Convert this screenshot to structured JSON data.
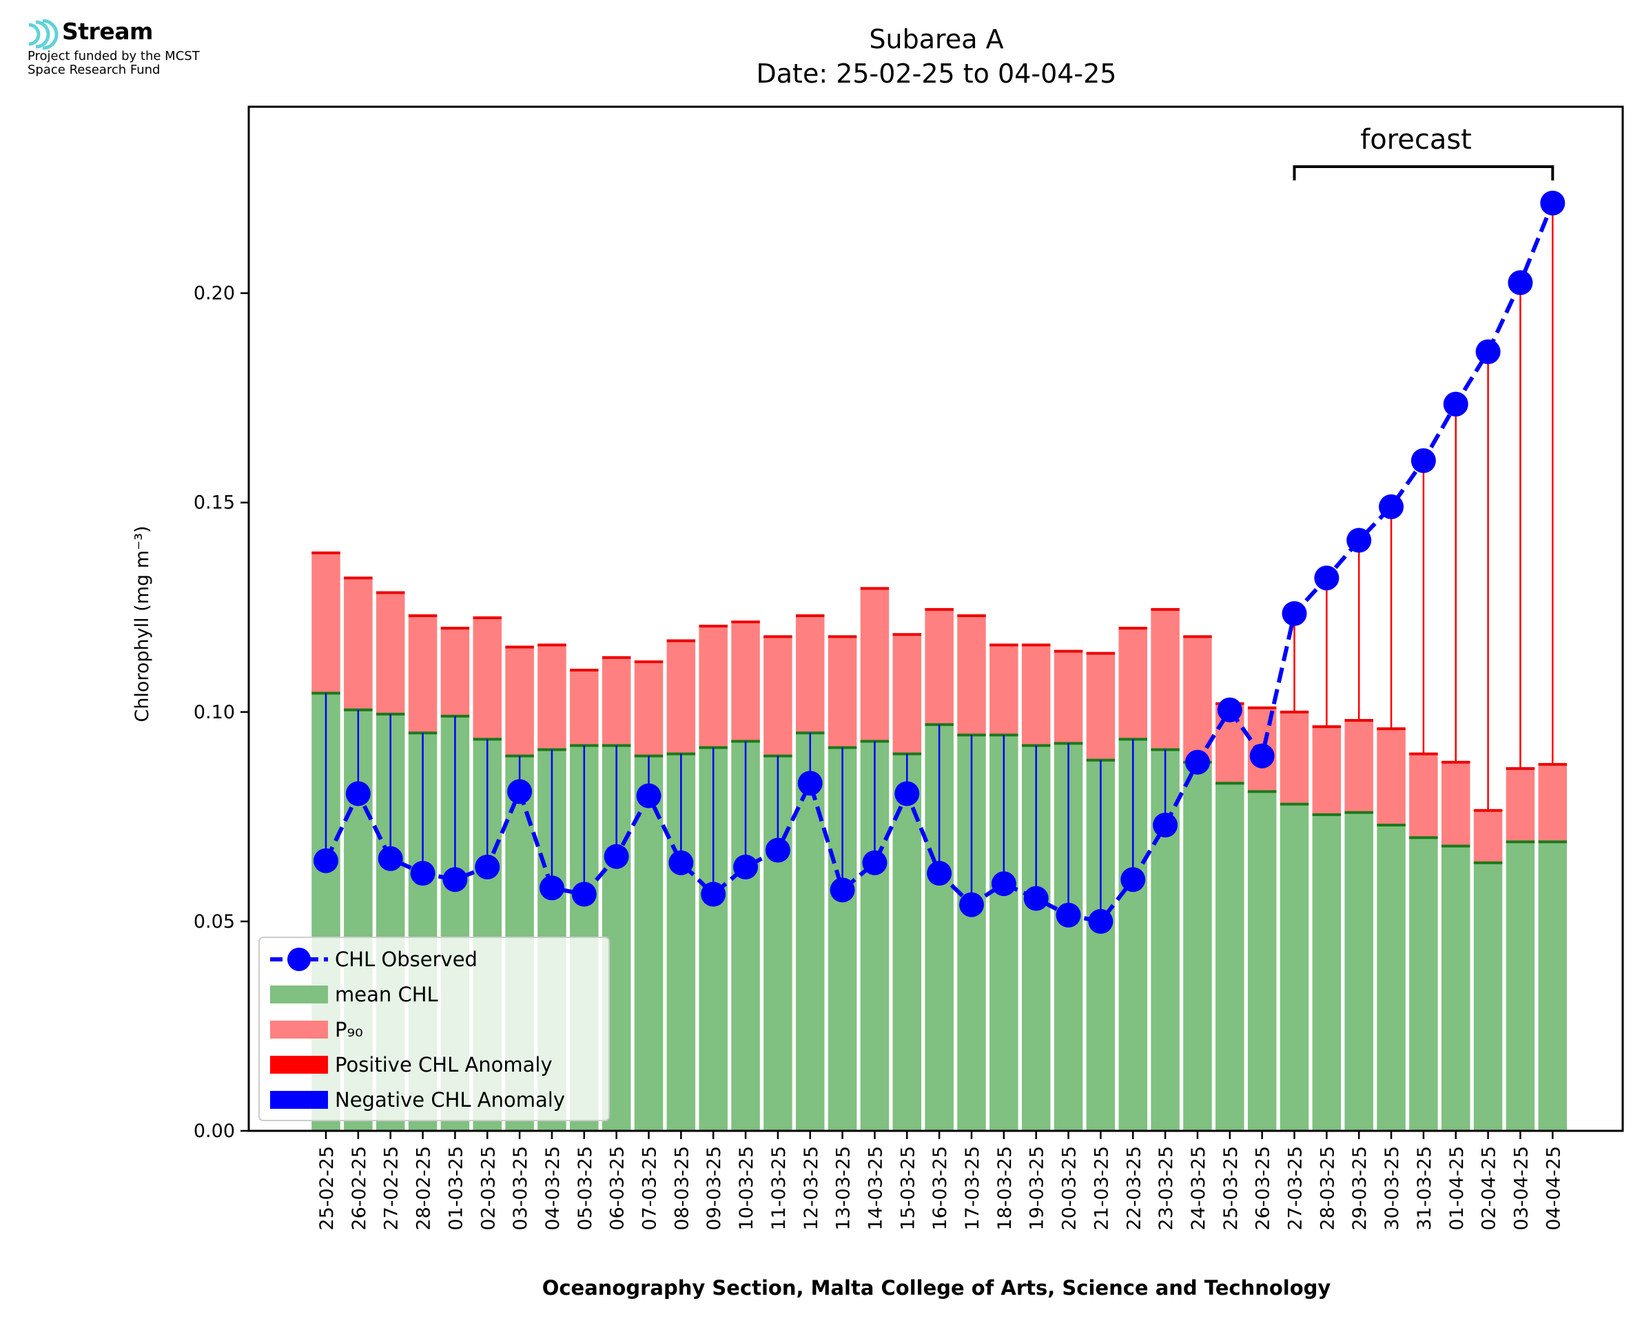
{
  "logo": {
    "name": "Stream",
    "line1": "Project funded by the MCST",
    "line2": "Space Research Fund",
    "icon": "stream-waves-icon",
    "icon_color": "#5fd3d8"
  },
  "forecast_label": "forecast",
  "colors": {
    "observed": "#0000ff",
    "mean_fill": "#80c080",
    "mean_edge": "#1a7a1a",
    "p90_fill": "#ff8080",
    "p90_edge": "#ee0000",
    "pos_anomaly": "#ff0000",
    "neg_anomaly": "#0000ff"
  },
  "chart_data": {
    "type": "bar",
    "title": "Subarea A",
    "subtitle": "Date: 25-02-25 to 04-04-25",
    "xlabel": "Oceanography Section, Malta College of Arts, Science and Technology",
    "ylabel": "Chlorophyll (mg m⁻³)",
    "ylim": [
      0,
      0.2445
    ],
    "yticks": [
      "0.00",
      "0.05",
      "0.10",
      "0.15",
      "0.20"
    ],
    "ytick_values": [
      0,
      0.05,
      0.1,
      0.15,
      0.2
    ],
    "legend_position": "lower-left",
    "legend": [
      {
        "label": "CHL Observed",
        "kind": "line-marker"
      },
      {
        "label": "mean CHL",
        "kind": "patch-mean"
      },
      {
        "label": "P₉₀",
        "kind": "patch-p90"
      },
      {
        "label": "Positive CHL Anomaly",
        "kind": "patch-pos"
      },
      {
        "label": "Negative CHL Anomaly",
        "kind": "patch-neg"
      }
    ],
    "categories": [
      "25-02-25",
      "26-02-25",
      "27-02-25",
      "28-02-25",
      "01-03-25",
      "02-03-25",
      "03-03-25",
      "04-03-25",
      "05-03-25",
      "06-03-25",
      "07-03-25",
      "08-03-25",
      "09-03-25",
      "10-03-25",
      "11-03-25",
      "12-03-25",
      "13-03-25",
      "14-03-25",
      "15-03-25",
      "16-03-25",
      "17-03-25",
      "18-03-25",
      "19-03-25",
      "20-03-25",
      "21-03-25",
      "22-03-25",
      "23-03-25",
      "24-03-25",
      "25-03-25",
      "26-03-25",
      "27-03-25",
      "28-03-25",
      "29-03-25",
      "30-03-25",
      "31-03-25",
      "01-04-25",
      "02-04-25",
      "03-04-25",
      "04-04-25"
    ],
    "forecast_range": [
      "27-03-25",
      "04-04-25"
    ],
    "series": [
      {
        "name": "mean CHL",
        "values": [
          0.1045,
          0.1005,
          0.0995,
          0.095,
          0.099,
          0.0935,
          0.0895,
          0.091,
          0.092,
          0.092,
          0.0895,
          0.09,
          0.0915,
          0.093,
          0.0895,
          0.095,
          0.0915,
          0.093,
          0.09,
          0.097,
          0.0945,
          0.0945,
          0.092,
          0.0925,
          0.0885,
          0.0935,
          0.091,
          0.088,
          0.083,
          0.081,
          0.078,
          0.0755,
          0.076,
          0.073,
          0.07,
          0.068,
          0.064,
          0.069,
          0.069
        ]
      },
      {
        "name": "P₉₀",
        "values": [
          0.138,
          0.132,
          0.1285,
          0.123,
          0.12,
          0.1225,
          0.1155,
          0.116,
          0.11,
          0.113,
          0.112,
          0.117,
          0.1205,
          0.1215,
          0.118,
          0.123,
          0.118,
          0.1295,
          0.1185,
          0.1245,
          0.123,
          0.116,
          0.116,
          0.1145,
          0.114,
          0.12,
          0.1245,
          0.118,
          0.102,
          0.101,
          0.1,
          0.0965,
          0.098,
          0.096,
          0.09,
          0.088,
          0.0765,
          0.0865,
          0.0875
        ]
      },
      {
        "name": "CHL Observed",
        "values": [
          0.0645,
          0.0805,
          0.065,
          0.0615,
          0.06,
          0.063,
          0.081,
          0.058,
          0.0565,
          0.0655,
          0.08,
          0.064,
          0.0565,
          0.063,
          0.067,
          0.083,
          0.0575,
          0.064,
          0.0805,
          0.0615,
          0.054,
          0.059,
          0.0555,
          0.0515,
          0.05,
          0.06,
          0.073,
          0.088,
          0.1005,
          0.0895,
          0.1235,
          0.132,
          0.141,
          0.149,
          0.16,
          0.1735,
          0.186,
          0.2025,
          0.2215
        ]
      }
    ]
  }
}
